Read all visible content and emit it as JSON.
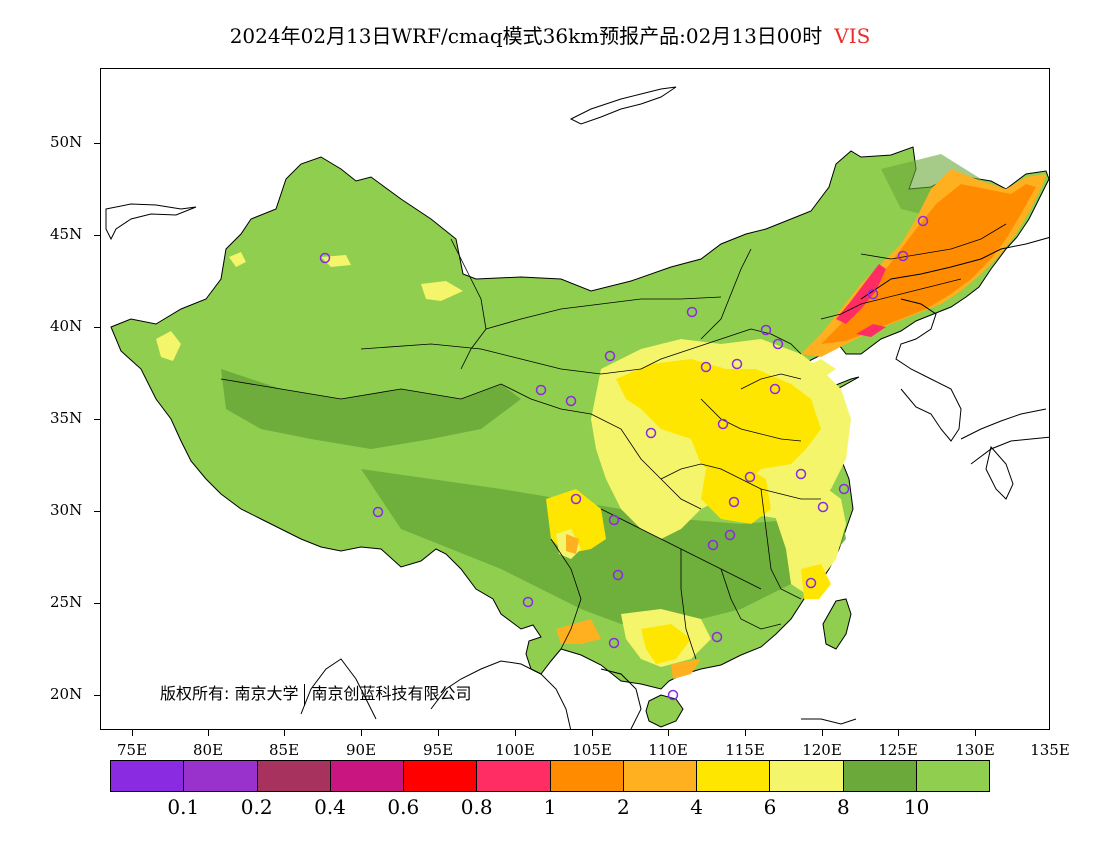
{
  "title": {
    "main": "2024年02月13日WRF/cmaq模式36km预报产品:02月13日00时",
    "product": "VIS"
  },
  "map": {
    "lat_labels": [
      "50N",
      "45N",
      "40N",
      "35N",
      "30N",
      "25N",
      "20N"
    ],
    "lon_labels": [
      "75E",
      "80E",
      "85E",
      "90E",
      "95E",
      "100E",
      "105E",
      "110E",
      "115E",
      "120E",
      "125E",
      "130E",
      "135E"
    ],
    "copyright": {
      "left": "版权所有: 南京大学",
      "right": "南京创蓝科技有限公司"
    },
    "colors": {
      "background_good": "#8fce4e",
      "dark_green": "#6aa93a",
      "light_yellow": "#f4f56a",
      "yellow": "#ffe600",
      "orange_light": "#ffb020",
      "orange": "#ff8c00",
      "pink": "#ff2d64",
      "station_marker": "#8a2be2",
      "border": "#000000"
    }
  },
  "colorbar": {
    "colors": [
      "#8a2be2",
      "#9932cc",
      "#a8325e",
      "#c8157f",
      "#ff0000",
      "#ff2d64",
      "#ff8c00",
      "#ffb020",
      "#ffe600",
      "#f4f56a",
      "#6aa93a",
      "#8fce4e"
    ],
    "labels": [
      "0.1",
      "0.2",
      "0.4",
      "0.6",
      "0.8",
      "1",
      "2",
      "4",
      "6",
      "8",
      "10"
    ]
  }
}
